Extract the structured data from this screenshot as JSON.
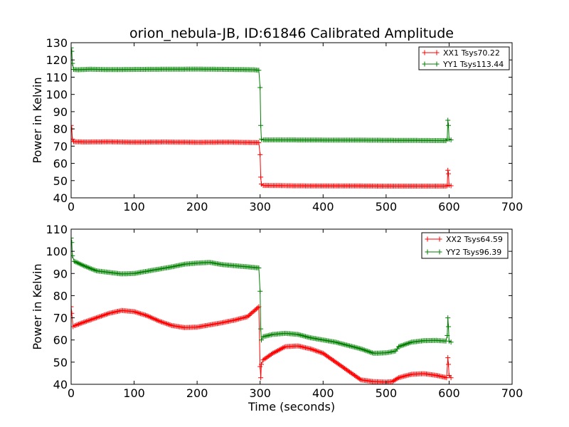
{
  "chart_data": [
    {
      "type": "line",
      "title": "orion_nebula-JB, ID:61846 Calibrated Amplitude",
      "xlabel": "",
      "ylabel": "Power in Kelvin",
      "xlim": [
        0,
        700
      ],
      "ylim": [
        40,
        130
      ],
      "xticks": [
        0,
        100,
        200,
        300,
        400,
        500,
        600,
        700
      ],
      "yticks": [
        40,
        50,
        60,
        70,
        80,
        90,
        100,
        110,
        120,
        130
      ],
      "legend_position": "top-right",
      "series": [
        {
          "name": "XX1 Tsys70.22",
          "color": "#ff0000",
          "points": [
            [
              0,
              82
            ],
            [
              1,
              80
            ],
            [
              2,
              74
            ],
            [
              4,
              72.6
            ],
            [
              20,
              72.4
            ],
            [
              60,
              72.5
            ],
            [
              100,
              72.3
            ],
            [
              150,
              72.4
            ],
            [
              200,
              72.2
            ],
            [
              250,
              72.3
            ],
            [
              290,
              72.1
            ],
            [
              298,
              72.0
            ],
            [
              300,
              65
            ],
            [
              301,
              52
            ],
            [
              302,
              48
            ],
            [
              305,
              47.2
            ],
            [
              350,
              47.0
            ],
            [
              400,
              46.9
            ],
            [
              450,
              46.9
            ],
            [
              500,
              46.8
            ],
            [
              550,
              46.8
            ],
            [
              595,
              46.8
            ],
            [
              597,
              47
            ],
            [
              598,
              56
            ],
            [
              599,
              54
            ],
            [
              600,
              47.3
            ],
            [
              603,
              47.0
            ]
          ]
        },
        {
          "name": "YY1 Tsys113.44",
          "color": "#007f00",
          "points": [
            [
              0,
              127
            ],
            [
              1,
              125
            ],
            [
              2,
              118
            ],
            [
              4,
              114.5
            ],
            [
              10,
              114.3
            ],
            [
              30,
              114.6
            ],
            [
              60,
              114.4
            ],
            [
              100,
              114.5
            ],
            [
              150,
              114.6
            ],
            [
              200,
              114.7
            ],
            [
              250,
              114.5
            ],
            [
              290,
              114.3
            ],
            [
              298,
              114.0
            ],
            [
              300,
              104
            ],
            [
              301,
              82
            ],
            [
              302,
              74
            ],
            [
              305,
              73.6
            ],
            [
              350,
              73.6
            ],
            [
              400,
              73.5
            ],
            [
              450,
              73.5
            ],
            [
              500,
              73.4
            ],
            [
              550,
              73.3
            ],
            [
              595,
              73.2
            ],
            [
              597,
              74
            ],
            [
              598,
              85
            ],
            [
              599,
              82
            ],
            [
              600,
              74
            ],
            [
              603,
              73.6
            ]
          ]
        }
      ]
    },
    {
      "type": "line",
      "title": "",
      "xlabel": "Time (seconds)",
      "ylabel": "Power in Kelvin",
      "xlim": [
        0,
        700
      ],
      "ylim": [
        40,
        110
      ],
      "xticks": [
        0,
        100,
        200,
        300,
        400,
        500,
        600,
        700
      ],
      "yticks": [
        40,
        50,
        60,
        70,
        80,
        90,
        100,
        110
      ],
      "legend_position": "top-right",
      "series": [
        {
          "name": "XX2 Tsys64.59",
          "color": "#ff0000",
          "points": [
            [
              0,
              75
            ],
            [
              1,
              72
            ],
            [
              3,
              66
            ],
            [
              6,
              66.5
            ],
            [
              20,
              68
            ],
            [
              40,
              70
            ],
            [
              60,
              72
            ],
            [
              80,
              73.3
            ],
            [
              100,
              72.8
            ],
            [
              120,
              71
            ],
            [
              140,
              68.5
            ],
            [
              160,
              66.5
            ],
            [
              180,
              65.6
            ],
            [
              200,
              65.8
            ],
            [
              220,
              66.8
            ],
            [
              240,
              67.8
            ],
            [
              260,
              69
            ],
            [
              280,
              70.5
            ],
            [
              290,
              73
            ],
            [
              298,
              75
            ],
            [
              300,
              48
            ],
            [
              301,
              43
            ],
            [
              302,
              49
            ],
            [
              305,
              51
            ],
            [
              320,
              54
            ],
            [
              340,
              57
            ],
            [
              360,
              57.3
            ],
            [
              380,
              56
            ],
            [
              400,
              54
            ],
            [
              420,
              50
            ],
            [
              440,
              46
            ],
            [
              460,
              42
            ],
            [
              480,
              41.2
            ],
            [
              500,
              41
            ],
            [
              510,
              41.2
            ],
            [
              520,
              43
            ],
            [
              540,
              44.5
            ],
            [
              560,
              44.8
            ],
            [
              580,
              44
            ],
            [
              596,
              43
            ],
            [
              598,
              52
            ],
            [
              599,
              49
            ],
            [
              600,
              44
            ],
            [
              603,
              43
            ]
          ]
        },
        {
          "name": "YY2 Tsys96.39",
          "color": "#007f00",
          "points": [
            [
              0,
              106
            ],
            [
              1,
              104
            ],
            [
              2,
              98
            ],
            [
              5,
              95.5
            ],
            [
              20,
              93.5
            ],
            [
              40,
              91.2
            ],
            [
              60,
              90.5
            ],
            [
              80,
              89.8
            ],
            [
              100,
              90
            ],
            [
              120,
              91
            ],
            [
              140,
              92
            ],
            [
              160,
              93
            ],
            [
              180,
              94.2
            ],
            [
              200,
              94.7
            ],
            [
              220,
              95
            ],
            [
              240,
              94
            ],
            [
              260,
              93.5
            ],
            [
              280,
              93
            ],
            [
              298,
              92.5
            ],
            [
              300,
              82
            ],
            [
              301,
              65
            ],
            [
              302,
              60
            ],
            [
              305,
              61.5
            ],
            [
              320,
              62.5
            ],
            [
              340,
              63
            ],
            [
              360,
              62.5
            ],
            [
              380,
              61
            ],
            [
              400,
              60
            ],
            [
              420,
              59
            ],
            [
              440,
              57.5
            ],
            [
              460,
              56
            ],
            [
              480,
              54
            ],
            [
              500,
              54.2
            ],
            [
              515,
              55
            ],
            [
              520,
              57
            ],
            [
              540,
              59
            ],
            [
              560,
              59.7
            ],
            [
              580,
              59.8
            ],
            [
              595,
              59.5
            ],
            [
              597,
              62
            ],
            [
              598,
              70
            ],
            [
              599,
              66
            ],
            [
              600,
              59.5
            ],
            [
              603,
              59
            ]
          ]
        }
      ]
    }
  ]
}
